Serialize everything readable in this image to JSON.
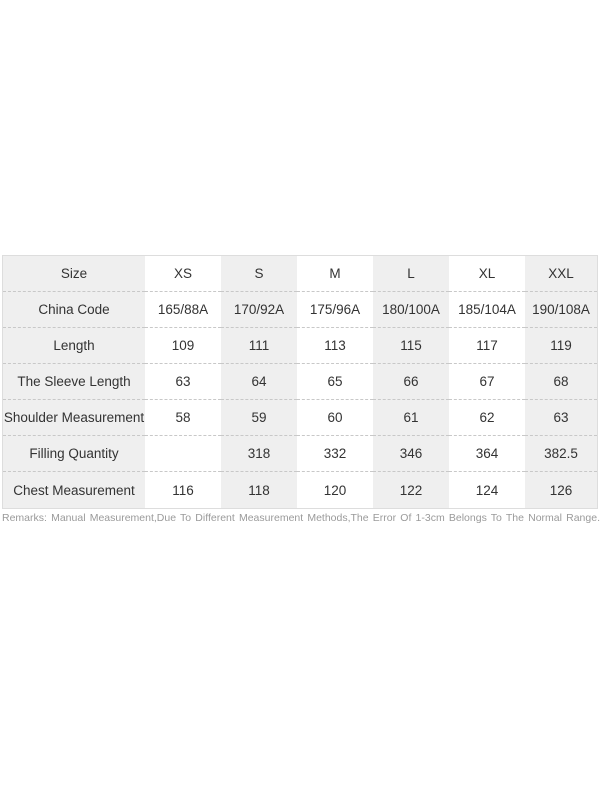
{
  "table": {
    "rows": [
      {
        "label": "Size",
        "values": [
          "XS",
          "S",
          "M",
          "L",
          "XL",
          "XXL"
        ]
      },
      {
        "label": "China Code",
        "values": [
          "165/88A",
          "170/92A",
          "175/96A",
          "180/100A",
          "185/104A",
          "190/108A"
        ]
      },
      {
        "label": "Length",
        "values": [
          "109",
          "111",
          "113",
          "115",
          "117",
          "119"
        ]
      },
      {
        "label": "The Sleeve Length",
        "values": [
          "63",
          "64",
          "65",
          "66",
          "67",
          "68"
        ]
      },
      {
        "label": "Shoulder Measurement",
        "values": [
          "58",
          "59",
          "60",
          "61",
          "62",
          "63"
        ]
      },
      {
        "label": "Filling Quantity",
        "values": [
          "",
          "318",
          "332",
          "346",
          "364",
          "382.5"
        ]
      },
      {
        "label": "Chest Measurement",
        "values": [
          "116",
          "118",
          "120",
          "122",
          "124",
          "126"
        ]
      }
    ]
  },
  "remarks": "Remarks: Manual Measurement,Due To Different Measurement Methods,The Error Of 1-3cm Belongs To The Normal Range."
}
